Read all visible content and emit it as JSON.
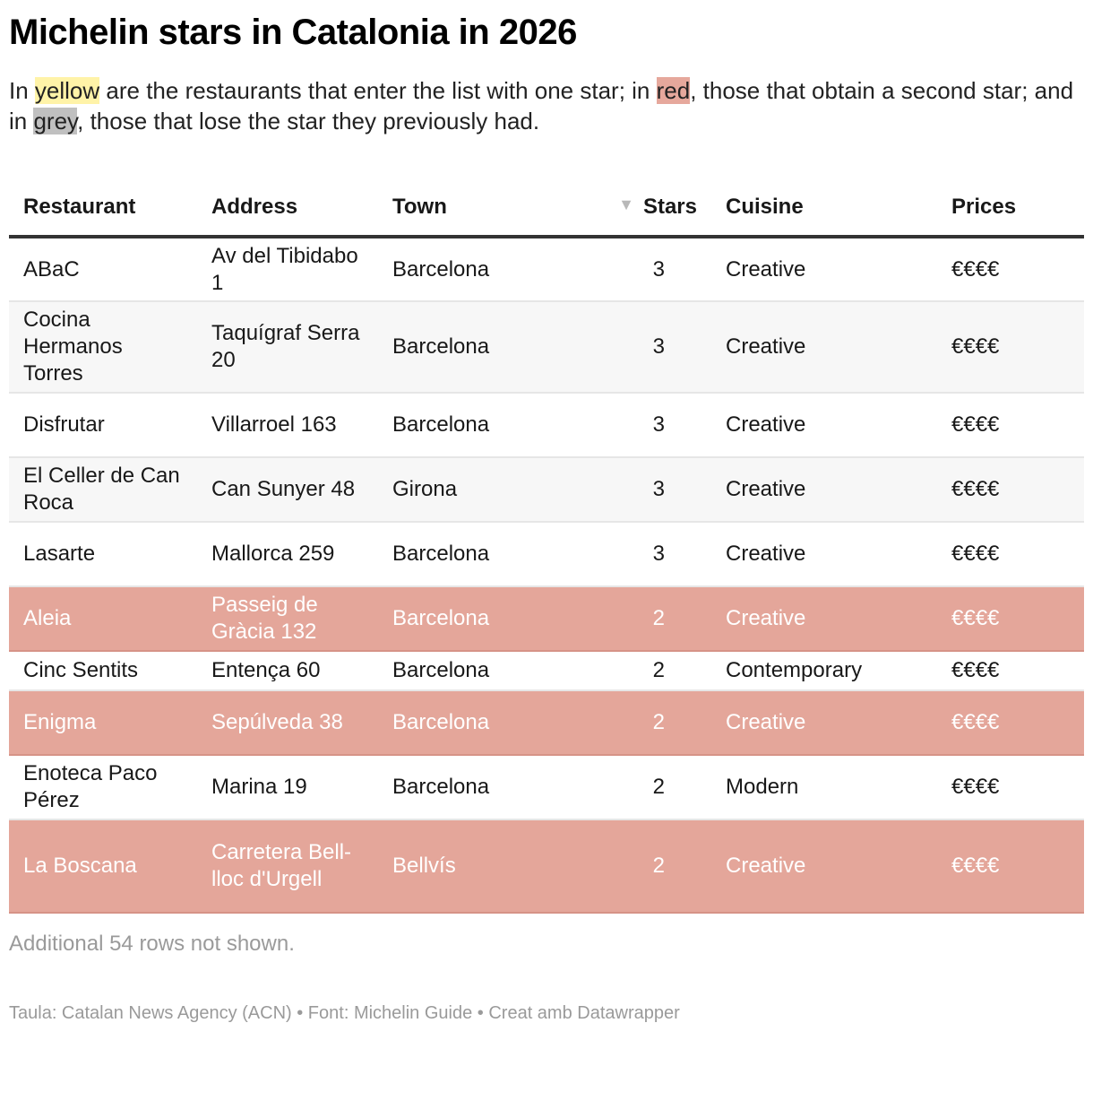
{
  "title": "Michelin stars in Catalonia in 2026",
  "description": {
    "p1": "In ",
    "yellow": "yellow",
    "p2": " are the restaurants that enter the list with one star; in ",
    "red": "red",
    "p3": ", those that obtain a second star; and in ",
    "grey": "grey",
    "p4": ", those that lose the star they previously had."
  },
  "colors": {
    "yellow_highlight": "#fff3a8",
    "red_highlight": "#e4a69a",
    "grey_highlight": "#c0c0c0",
    "header_rule": "#333333",
    "stripe": "#f7f7f7"
  },
  "table": {
    "columns": [
      "Restaurant",
      "Address",
      "Town",
      "Stars",
      "Cuisine",
      "Prices"
    ],
    "sort_icon": "triangle-down-icon",
    "sorted_column": "Stars",
    "rows": [
      {
        "restaurant": "ABaC",
        "address": "Av del Tibidabo 1",
        "town": "Barcelona",
        "stars": "3",
        "cuisine": "Creative",
        "prices": "€€€€",
        "highlight": "none"
      },
      {
        "restaurant": "Cocina Hermanos Torres",
        "address": "Taquígraf Serra 20",
        "town": "Barcelona",
        "stars": "3",
        "cuisine": "Creative",
        "prices": "€€€€",
        "highlight": "none"
      },
      {
        "restaurant": "Disfrutar",
        "address": "Villarroel 163",
        "town": "Barcelona",
        "stars": "3",
        "cuisine": "Creative",
        "prices": "€€€€",
        "highlight": "none"
      },
      {
        "restaurant": "El Celler de Can Roca",
        "address": "Can Sunyer 48",
        "town": "Girona",
        "stars": "3",
        "cuisine": "Creative",
        "prices": "€€€€",
        "highlight": "none"
      },
      {
        "restaurant": "Lasarte",
        "address": "Mallorca 259",
        "town": "Barcelona",
        "stars": "3",
        "cuisine": "Creative",
        "prices": "€€€€",
        "highlight": "none"
      },
      {
        "restaurant": "Aleia",
        "address": "Passeig de Gràcia 132",
        "town": "Barcelona",
        "stars": "2",
        "cuisine": "Creative",
        "prices": "€€€€",
        "highlight": "red"
      },
      {
        "restaurant": "Cinc Sentits",
        "address": "Entença 60",
        "town": "Barcelona",
        "stars": "2",
        "cuisine": "Contemporary",
        "prices": "€€€€",
        "highlight": "none"
      },
      {
        "restaurant": "Enigma",
        "address": "Sepúlveda 38",
        "town": "Barcelona",
        "stars": "2",
        "cuisine": "Creative",
        "prices": "€€€€",
        "highlight": "red"
      },
      {
        "restaurant": "Enoteca Paco Pérez",
        "address": "Marina 19",
        "town": "Barcelona",
        "stars": "2",
        "cuisine": "Modern",
        "prices": "€€€€",
        "highlight": "none"
      },
      {
        "restaurant": "La Boscana",
        "address": "Carretera Bell-lloc d'Urgell",
        "town": "Bellvís",
        "stars": "2",
        "cuisine": "Creative",
        "prices": "€€€€",
        "highlight": "red"
      }
    ]
  },
  "note": "Additional 54 rows not shown.",
  "footer": "Taula: Catalan News Agency (ACN) • Font: Michelin Guide • Creat amb Datawrapper",
  "chart_data": {
    "type": "table",
    "title": "Michelin stars in Catalonia in 2026",
    "subtitle": "In yellow are the restaurants that enter the list with one star; in red, those that obtain a second star; and in grey, those that lose the star they previously had.",
    "columns": [
      "Restaurant",
      "Address",
      "Town",
      "Stars",
      "Cuisine",
      "Prices"
    ],
    "rows": [
      [
        "ABaC",
        "Av del Tibidabo 1",
        "Barcelona",
        3,
        "Creative",
        "€€€€"
      ],
      [
        "Cocina Hermanos Torres",
        "Taquígraf Serra 20",
        "Barcelona",
        3,
        "Creative",
        "€€€€"
      ],
      [
        "Disfrutar",
        "Villarroel 163",
        "Barcelona",
        3,
        "Creative",
        "€€€€"
      ],
      [
        "El Celler de Can Roca",
        "Can Sunyer 48",
        "Girona",
        3,
        "Creative",
        "€€€€"
      ],
      [
        "Lasarte",
        "Mallorca 259",
        "Barcelona",
        3,
        "Creative",
        "€€€€"
      ],
      [
        "Aleia",
        "Passeig de Gràcia 132",
        "Barcelona",
        2,
        "Creative",
        "€€€€"
      ],
      [
        "Cinc Sentits",
        "Entença 60",
        "Barcelona",
        2,
        "Contemporary",
        "€€€€"
      ],
      [
        "Enigma",
        "Sepúlveda 38",
        "Barcelona",
        2,
        "Creative",
        "€€€€"
      ],
      [
        "Enoteca Paco Pérez",
        "Marina 19",
        "Barcelona",
        2,
        "Modern",
        "€€€€"
      ],
      [
        "La Boscana",
        "Carretera Bell-lloc d'Urgell",
        "Bellvís",
        2,
        "Creative",
        "€€€€"
      ]
    ],
    "highlighted_rows_red": [
      "Aleia",
      "Enigma",
      "La Boscana"
    ],
    "sorted_by": "Stars (descending)",
    "hidden_rows": 54,
    "source": "Michelin Guide"
  }
}
